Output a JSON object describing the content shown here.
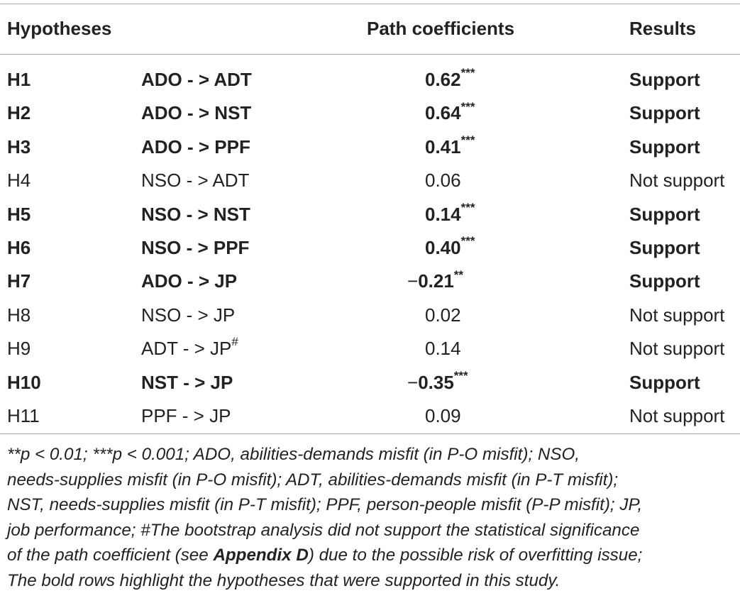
{
  "table": {
    "headers": {
      "hypotheses": "Hypotheses",
      "path_coefficients": "Path coefficients",
      "results": "Results"
    },
    "rows": [
      {
        "id": "H1",
        "path": "ADO - > ADT",
        "path_sup": "",
        "sign": "",
        "coef": "0.62",
        "stars": "***",
        "result": "Support",
        "bold": true
      },
      {
        "id": "H2",
        "path": "ADO - > NST",
        "path_sup": "",
        "sign": "",
        "coef": "0.64",
        "stars": "***",
        "result": "Support",
        "bold": true
      },
      {
        "id": "H3",
        "path": "ADO - > PPF",
        "path_sup": "",
        "sign": "",
        "coef": "0.41",
        "stars": "***",
        "result": "Support",
        "bold": true
      },
      {
        "id": "H4",
        "path": "NSO - > ADT",
        "path_sup": "",
        "sign": "",
        "coef": "0.06",
        "stars": "",
        "result": "Not support",
        "bold": false
      },
      {
        "id": "H5",
        "path": "NSO - > NST",
        "path_sup": "",
        "sign": "",
        "coef": "0.14",
        "stars": "***",
        "result": "Support",
        "bold": true
      },
      {
        "id": "H6",
        "path": "NSO - > PPF",
        "path_sup": "",
        "sign": "",
        "coef": "0.40",
        "stars": "***",
        "result": "Support",
        "bold": true
      },
      {
        "id": "H7",
        "path": "ADO - > JP",
        "path_sup": "",
        "sign": "−",
        "coef": "0.21",
        "stars": "**",
        "result": "Support",
        "bold": true
      },
      {
        "id": "H8",
        "path": "NSO - > JP",
        "path_sup": "",
        "sign": "",
        "coef": "0.02",
        "stars": "",
        "result": "Not support",
        "bold": false
      },
      {
        "id": "H9",
        "path": "ADT - > JP",
        "path_sup": "#",
        "sign": "",
        "coef": "0.14",
        "stars": "",
        "result": "Not support",
        "bold": false
      },
      {
        "id": "H10",
        "path": "NST - > JP",
        "path_sup": "",
        "sign": "−",
        "coef": "0.35",
        "stars": "***",
        "result": "Support",
        "bold": true
      },
      {
        "id": "H11",
        "path": "PPF - > JP",
        "path_sup": "",
        "sign": "",
        "coef": "0.09",
        "stars": "",
        "result": "Not support",
        "bold": false
      }
    ]
  },
  "footnote": {
    "line1": "**p < 0.01; ***p < 0.001; ADO, abilities-demands misfit (in P-O misfit); NSO,",
    "line2": "needs-supplies misfit (in P-O misfit); ADT, abilities-demands misfit (in P-T misfit);",
    "line3": "NST, needs-supplies misfit (in P-T misfit); PPF, person-people misfit (P-P misfit); JP,",
    "line4": "job performance; #The bootstrap analysis did not support the statistical significance",
    "line5_before": "of the path coefficient (see ",
    "line5_bold": "Appendix D",
    "line5_after": ") due to the possible risk of overfitting issue;",
    "line6": "The bold rows highlight the hypotheses that were supported in this study."
  }
}
